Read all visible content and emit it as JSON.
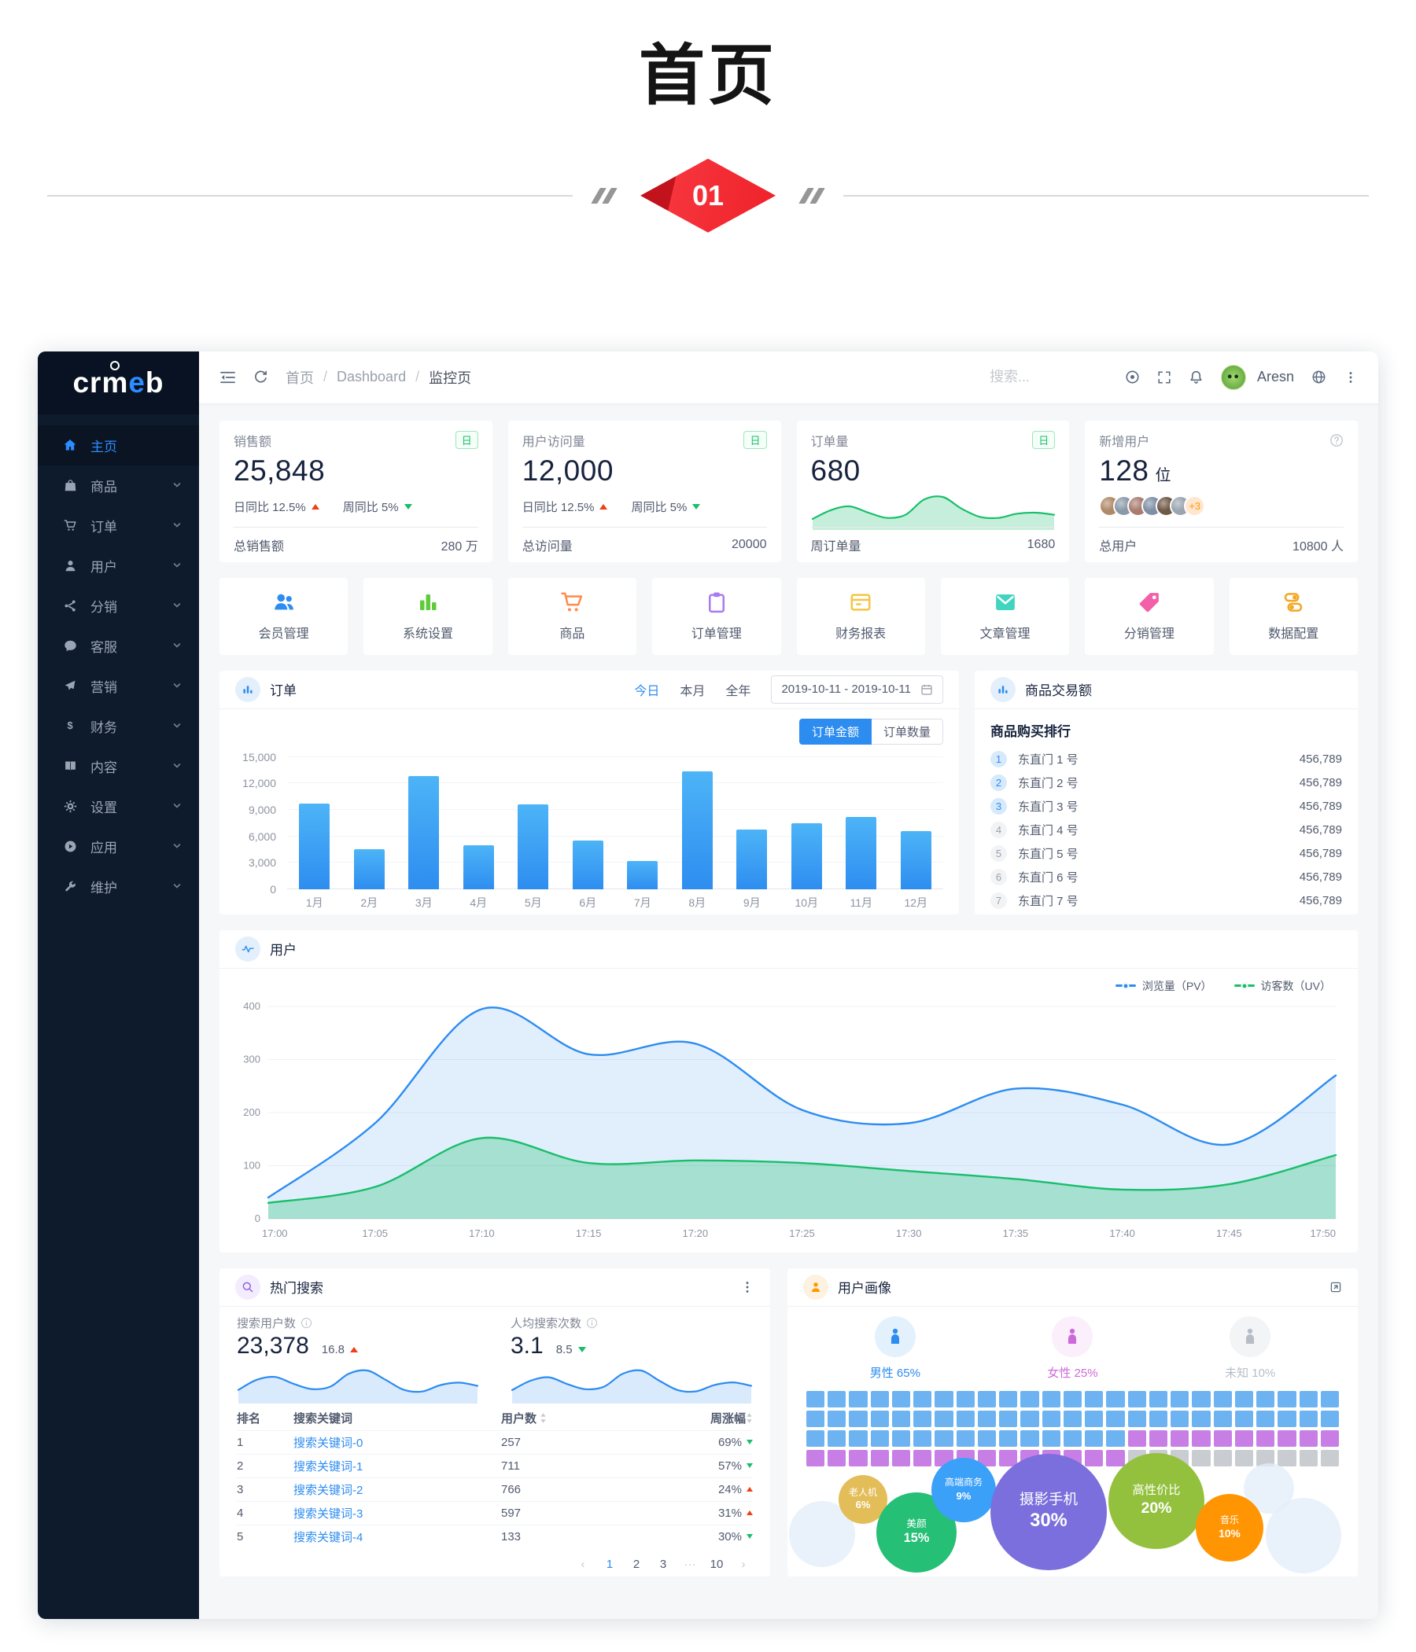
{
  "page": {
    "title": "首页",
    "section_number": "01"
  },
  "sidebar": {
    "logo": "crmeb",
    "items": [
      {
        "label": "主页",
        "icon": "home",
        "active": true,
        "has_children": false
      },
      {
        "label": "商品",
        "icon": "goods",
        "active": false,
        "has_children": true
      },
      {
        "label": "订单",
        "icon": "cart",
        "active": false,
        "has_children": true
      },
      {
        "label": "用户",
        "icon": "user",
        "active": false,
        "has_children": true
      },
      {
        "label": "分销",
        "icon": "share",
        "active": false,
        "has_children": true
      },
      {
        "label": "客服",
        "icon": "chat",
        "active": false,
        "has_children": true
      },
      {
        "label": "营销",
        "icon": "send",
        "active": false,
        "has_children": true
      },
      {
        "label": "财务",
        "icon": "dollar",
        "active": false,
        "has_children": true
      },
      {
        "label": "内容",
        "icon": "book",
        "active": false,
        "has_children": true
      },
      {
        "label": "设置",
        "icon": "gear",
        "active": false,
        "has_children": true
      },
      {
        "label": "应用",
        "icon": "app",
        "active": false,
        "has_children": true
      },
      {
        "label": "维护",
        "icon": "wrench",
        "active": false,
        "has_children": true
      }
    ]
  },
  "navbar": {
    "breadcrumb": [
      "首页",
      "Dashboard",
      "监控页"
    ],
    "separator": "/",
    "search_placeholder": "搜索...",
    "user_name": "Aresn"
  },
  "stat_cards": [
    {
      "type": "ratios",
      "title": "销售额",
      "badge": "日",
      "value": "25,848",
      "ratios": [
        {
          "label": "日同比",
          "value": "12.5%",
          "dir": "up"
        },
        {
          "label": "周同比",
          "value": "5%",
          "dir": "down"
        }
      ],
      "footer_label": "总销售额",
      "footer_value": "280 万"
    },
    {
      "type": "ratios",
      "title": "用户访问量",
      "badge": "日",
      "value": "12,000",
      "ratios": [
        {
          "label": "日同比",
          "value": "12.5%",
          "dir": "up"
        },
        {
          "label": "周同比",
          "value": "5%",
          "dir": "down"
        }
      ],
      "footer_label": "总访问量",
      "footer_value": "20000"
    },
    {
      "type": "spark",
      "title": "订单量",
      "badge": "日",
      "value": "680",
      "footer_label": "周订单量",
      "footer_value": "1680"
    },
    {
      "type": "avatars",
      "title": "新增用户",
      "value": "128",
      "value_suffix": "位",
      "avatars": 6,
      "extra": "+3",
      "footer_label": "总用户",
      "footer_value": "10800 人"
    }
  ],
  "quick_links": [
    {
      "label": "会员管理",
      "icon": "people",
      "color": "#2d8cf0"
    },
    {
      "label": "系统设置",
      "icon": "bars",
      "color": "#5ecb3a"
    },
    {
      "label": "商品",
      "icon": "cart-lg",
      "color": "#ff8a4b"
    },
    {
      "label": "订单管理",
      "icon": "clipboard",
      "color": "#a97af0"
    },
    {
      "label": "财务报表",
      "icon": "report",
      "color": "#f5c542"
    },
    {
      "label": "文章管理",
      "icon": "mail",
      "color": "#3fd5c0"
    },
    {
      "label": "分销管理",
      "icon": "tag",
      "color": "#f261a7"
    },
    {
      "label": "数据配置",
      "icon": "sliders",
      "color": "#f5a623"
    }
  ],
  "order_panel": {
    "title": "订单",
    "tabs": [
      "今日",
      "本月",
      "全年"
    ],
    "active_tab": "今日",
    "date_range": "2019-10-11 - 2019-10-11",
    "toggles": [
      "订单金额",
      "订单数量"
    ],
    "active_toggle": "订单金额"
  },
  "ranking_panel": {
    "title": "商品交易额",
    "subtitle": "商品购买排行",
    "items": [
      {
        "rank": 1,
        "name": "东直门 1 号",
        "value": "456,789"
      },
      {
        "rank": 2,
        "name": "东直门 2 号",
        "value": "456,789"
      },
      {
        "rank": 3,
        "name": "东直门 3 号",
        "value": "456,789"
      },
      {
        "rank": 4,
        "name": "东直门 4 号",
        "value": "456,789"
      },
      {
        "rank": 5,
        "name": "东直门 5 号",
        "value": "456,789"
      },
      {
        "rank": 6,
        "name": "东直门 6 号",
        "value": "456,789"
      },
      {
        "rank": 7,
        "name": "东直门 7 号",
        "value": "456,789"
      }
    ]
  },
  "visits_panel": {
    "title": "用户"
  },
  "hot_search_panel": {
    "title": "热门搜索",
    "stats": [
      {
        "label": "搜索用户数",
        "value": "23,378",
        "delta": "16.8",
        "dir": "up",
        "spark_id": "search_users_spark"
      },
      {
        "label": "人均搜索次数",
        "value": "3.1",
        "delta": "8.5",
        "dir": "down",
        "spark_id": "search_avg_spark"
      }
    ],
    "table": {
      "headers": [
        "排名",
        "搜索关键词",
        "用户数",
        "周涨幅"
      ],
      "rows": [
        {
          "rank": "1",
          "keyword": "搜索关键词-0",
          "users": "257",
          "growth": "69%",
          "dir": "down"
        },
        {
          "rank": "2",
          "keyword": "搜索关键词-1",
          "users": "711",
          "growth": "57%",
          "dir": "down"
        },
        {
          "rank": "3",
          "keyword": "搜索关键词-2",
          "users": "766",
          "growth": "24%",
          "dir": "up"
        },
        {
          "rank": "4",
          "keyword": "搜索关键词-3",
          "users": "597",
          "growth": "31%",
          "dir": "up"
        },
        {
          "rank": "5",
          "keyword": "搜索关键词-4",
          "users": "133",
          "growth": "30%",
          "dir": "down"
        }
      ]
    },
    "pagination": [
      "‹",
      "1",
      "2",
      "3",
      "···",
      "10",
      "›"
    ],
    "active_page": "1"
  },
  "profile_panel": {
    "title": "用户画像",
    "genders": [
      {
        "label": "男性 65%",
        "color": "#2d8cf0",
        "bg": "#e3f1fd"
      },
      {
        "label": "女性 25%",
        "color": "#cd6ada",
        "bg": "#fbeffb"
      },
      {
        "label": "未知 10%",
        "color": "#b7bdc6",
        "bg": "#f3f4f6"
      }
    ]
  },
  "chart_data": [
    {
      "id": "order_bar",
      "type": "bar",
      "title": "订单金额",
      "categories": [
        "1月",
        "2月",
        "3月",
        "4月",
        "5月",
        "6月",
        "7月",
        "8月",
        "9月",
        "10月",
        "11月",
        "12月"
      ],
      "values": [
        9700,
        4500,
        12800,
        5000,
        9600,
        5500,
        3200,
        13400,
        6800,
        7500,
        8200,
        6600
      ],
      "ylim": [
        0,
        15000
      ],
      "yticks": [
        0,
        3000,
        6000,
        9000,
        12000,
        15000
      ],
      "ytick_labels": [
        "0",
        "3,000",
        "6,000",
        "9,000",
        "12,000",
        "15,000"
      ],
      "grid": true
    },
    {
      "id": "visits_line",
      "type": "area",
      "title": "用户",
      "x": [
        "17:00",
        "17:05",
        "17:10",
        "17:15",
        "17:20",
        "17:25",
        "17:30",
        "17:35",
        "17:40",
        "17:45",
        "17:50"
      ],
      "series": [
        {
          "name": "浏览量（PV）",
          "color": "#2d8cf0",
          "fill": "rgba(45,140,240,0.14)",
          "values": [
            40,
            180,
            395,
            310,
            330,
            205,
            180,
            245,
            215,
            140,
            270
          ]
        },
        {
          "name": "访客数（UV）",
          "color": "#19be6b",
          "fill": "rgba(25,190,107,0.30)",
          "values": [
            30,
            60,
            152,
            105,
            110,
            105,
            90,
            75,
            55,
            65,
            120
          ]
        }
      ],
      "ylim": [
        0,
        400
      ],
      "yticks": [
        0,
        100,
        200,
        300,
        400
      ],
      "grid": true,
      "legend_position": "top-right"
    },
    {
      "id": "orders_spark",
      "type": "area",
      "color": "#19be6b",
      "fill": "rgba(25,190,107,0.25)",
      "values": [
        18,
        35,
        42,
        30,
        20,
        26,
        55,
        60,
        38,
        22,
        20,
        28,
        30,
        26
      ]
    },
    {
      "id": "search_users_spark",
      "type": "area",
      "color": "#2d8cf0",
      "fill": "rgba(45,140,240,0.18)",
      "values": [
        30,
        55,
        62,
        45,
        32,
        38,
        70,
        78,
        55,
        30,
        26,
        42,
        48,
        40
      ]
    },
    {
      "id": "search_avg_spark",
      "type": "area",
      "color": "#2d8cf0",
      "fill": "rgba(45,140,240,0.18)",
      "values": [
        28,
        50,
        58,
        42,
        30,
        36,
        66,
        74,
        50,
        28,
        25,
        40,
        46,
        38
      ]
    },
    {
      "id": "gender_waffle",
      "type": "waffle",
      "rows": 4,
      "cols": 25,
      "segments": [
        {
          "label": "男性",
          "pct": 65,
          "color": "#6db3f2"
        },
        {
          "label": "女性",
          "pct": 25,
          "color": "#c77fe6"
        },
        {
          "label": "未知",
          "pct": 10,
          "color": "#c9ccd1"
        }
      ]
    },
    {
      "id": "tags_bubbles",
      "type": "bubble",
      "items": [
        {
          "label": "老人机",
          "pct": "6%",
          "color": "#e3bd58"
        },
        {
          "label": "美颜",
          "pct": "15%",
          "color": "#25bf76"
        },
        {
          "label": "高端商务",
          "pct": "9%",
          "color": "#3aa0f8"
        },
        {
          "label": "摄影手机",
          "pct": "30%",
          "color": "#7a6fdc"
        },
        {
          "label": "高性价比",
          "pct": "20%",
          "color": "#93c13d"
        },
        {
          "label": "音乐",
          "pct": "10%",
          "color": "#ff9502"
        }
      ]
    }
  ]
}
